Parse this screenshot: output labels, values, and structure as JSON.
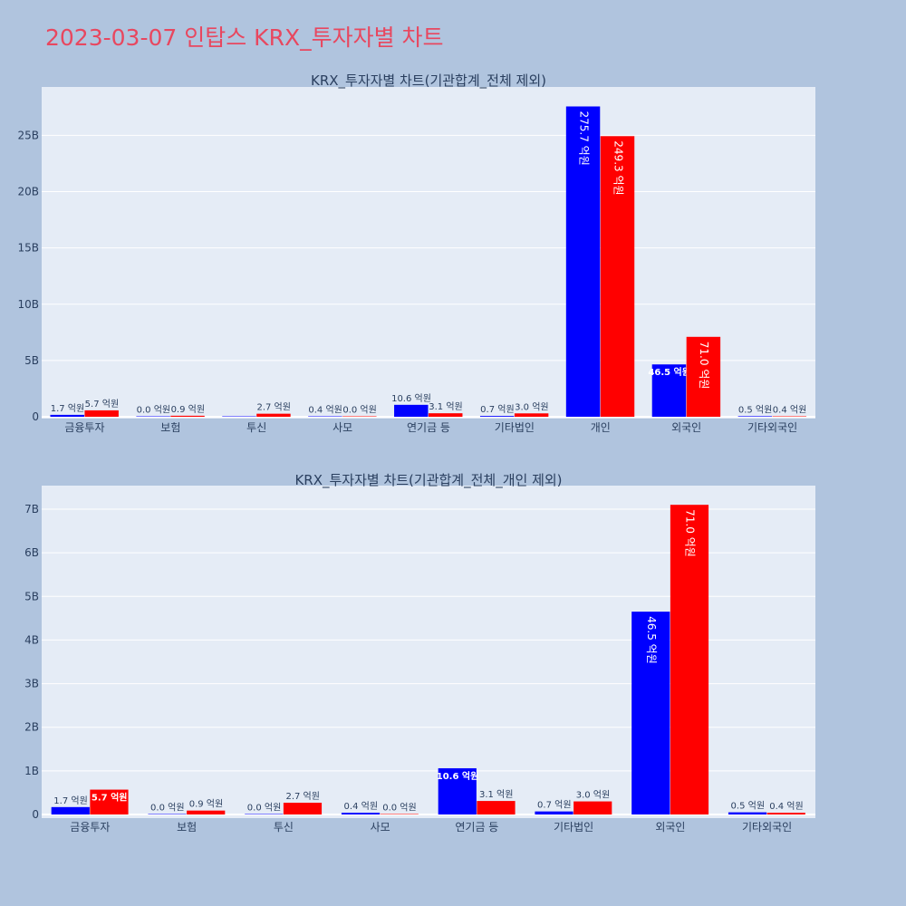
{
  "title": "2023-03-07 인탑스 KRX_투자자별 차트",
  "colors": {
    "buy": "#0000ff",
    "sell": "#ff0000",
    "plot_bg": "#e5ecf6",
    "page_bg": "#b0c4de"
  },
  "chart_data": [
    {
      "type": "bar",
      "title": "KRX_투자자별 차트(기관합계_전체 제외)",
      "categories": [
        "금융투자",
        "보험",
        "투신",
        "사모",
        "연기금 등",
        "기타법인",
        "개인",
        "외국인",
        "기타외국인"
      ],
      "ylim": [
        0,
        29.3
      ],
      "yticks": [
        0,
        5,
        10,
        15,
        20,
        25
      ],
      "ytick_labels": [
        "0",
        "5B",
        "10B",
        "15B",
        "20B",
        "25B"
      ],
      "grid": true,
      "series": [
        {
          "color": "#0000ff",
          "values": [
            0.17,
            0.0,
            0.0,
            0.04,
            1.06,
            0.07,
            27.57,
            4.65,
            0.05
          ],
          "labels": [
            "1.7 억원",
            "0.0 억원",
            "",
            "0.4 억원",
            "10.6 억원",
            "0.7 억원",
            "275.7 억원",
            "46.5 억원",
            "0.5 억원"
          ]
        },
        {
          "color": "#ff0000",
          "values": [
            0.57,
            0.09,
            0.27,
            0.0,
            0.31,
            0.3,
            24.93,
            7.1,
            0.04
          ],
          "labels": [
            "5.7 억원",
            "0.9 억원",
            "2.7 억원",
            "0.0 억원",
            "3.1 억원",
            "3.0 억원",
            "249.3 억원",
            "71.0 억원",
            "0.4 억원"
          ]
        }
      ]
    },
    {
      "type": "bar",
      "title": "KRX_투자자별 차트(기관합계_전체_개인 제외)",
      "categories": [
        "금융투자",
        "보험",
        "투신",
        "사모",
        "연기금 등",
        "기타법인",
        "외국인",
        "기타외국인"
      ],
      "ylim": [
        0,
        7.54
      ],
      "yticks": [
        0,
        1,
        2,
        3,
        4,
        5,
        6,
        7
      ],
      "ytick_labels": [
        "0",
        "1B",
        "2B",
        "3B",
        "4B",
        "5B",
        "6B",
        "7B"
      ],
      "grid": true,
      "series": [
        {
          "color": "#0000ff",
          "values": [
            0.17,
            0.0,
            0.0,
            0.04,
            1.06,
            0.07,
            4.65,
            0.05
          ],
          "labels": [
            "1.7 억원",
            "0.0 억원",
            "0.0 억원",
            "0.4 억원",
            "10.6 억원",
            "0.7 억원",
            "46.5 억원",
            "0.5 억원"
          ]
        },
        {
          "color": "#ff0000",
          "values": [
            0.57,
            0.09,
            0.27,
            0.0,
            0.31,
            0.3,
            7.1,
            0.04
          ],
          "labels": [
            "5.7 억원",
            "0.9 억원",
            "2.7 억원",
            "0.0 억원",
            "3.1 억원",
            "3.0 억원",
            "71.0 억원",
            "0.4 억원"
          ]
        }
      ]
    }
  ]
}
